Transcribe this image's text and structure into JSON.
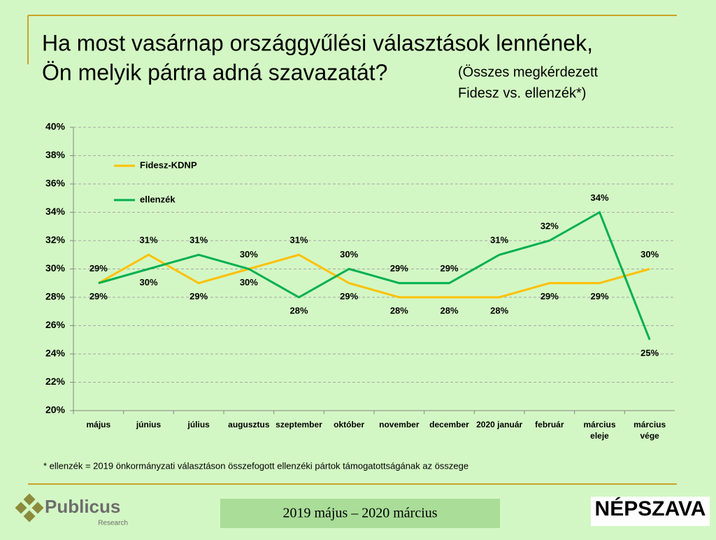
{
  "chart_data": {
    "type": "line",
    "title": [
      "Ha most vasárnap országgyűlési választások lennének,",
      "Ön melyik pártra adná szavazatát?"
    ],
    "subtitle": [
      "(Összes megkérdezett",
      "Fidesz vs. ellenzék*)"
    ],
    "categories": [
      "május",
      "június",
      "július",
      "augusztus",
      "szeptember",
      "október",
      "november",
      "december",
      "2020 január",
      "február",
      "március eleje",
      "március vége"
    ],
    "series": [
      {
        "name": "Fidesz-KDNP",
        "color": "#ffc000",
        "values": [
          29,
          31,
          29,
          30,
          31,
          29,
          28,
          28,
          28,
          29,
          29,
          30
        ],
        "value_labels": [
          "29%",
          "31%",
          "29%",
          "30%",
          "31%",
          "29%",
          "28%",
          "28%",
          "28%",
          "29%",
          "29%",
          "30%"
        ]
      },
      {
        "name": "ellenzék",
        "color": "#00b050",
        "values": [
          29,
          30,
          31,
          30,
          28,
          30,
          29,
          29,
          31,
          32,
          34,
          25
        ],
        "value_labels": [
          "29%",
          "30%",
          "31%",
          "30%",
          "28%",
          "30%",
          "29%",
          "29%",
          "31%",
          "32%",
          "34%",
          "25%"
        ]
      }
    ],
    "ylim": [
      20,
      40
    ],
    "yticks": [
      {
        "value": 20,
        "label": "20%"
      },
      {
        "value": 22,
        "label": "22%"
      },
      {
        "value": 24,
        "label": "24%"
      },
      {
        "value": 26,
        "label": "26%"
      },
      {
        "value": 28,
        "label": "28%"
      },
      {
        "value": 30,
        "label": "30%"
      },
      {
        "value": 32,
        "label": "32%"
      },
      {
        "value": 34,
        "label": "34%"
      },
      {
        "value": 36,
        "label": "36%"
      },
      {
        "value": 38,
        "label": "38%"
      },
      {
        "value": 40,
        "label": "40%"
      }
    ],
    "grid": true,
    "legend": "upper left",
    "footnote": "* ellenzék = 2019 önkormányzati választáson összefogott ellenzéki pártok támogatottságának az összege"
  },
  "footer": {
    "period": "2019 május – 2020 március",
    "brand": "Publicus",
    "brand_sub": "Research",
    "newspaper": "NÉPSZAVA"
  }
}
